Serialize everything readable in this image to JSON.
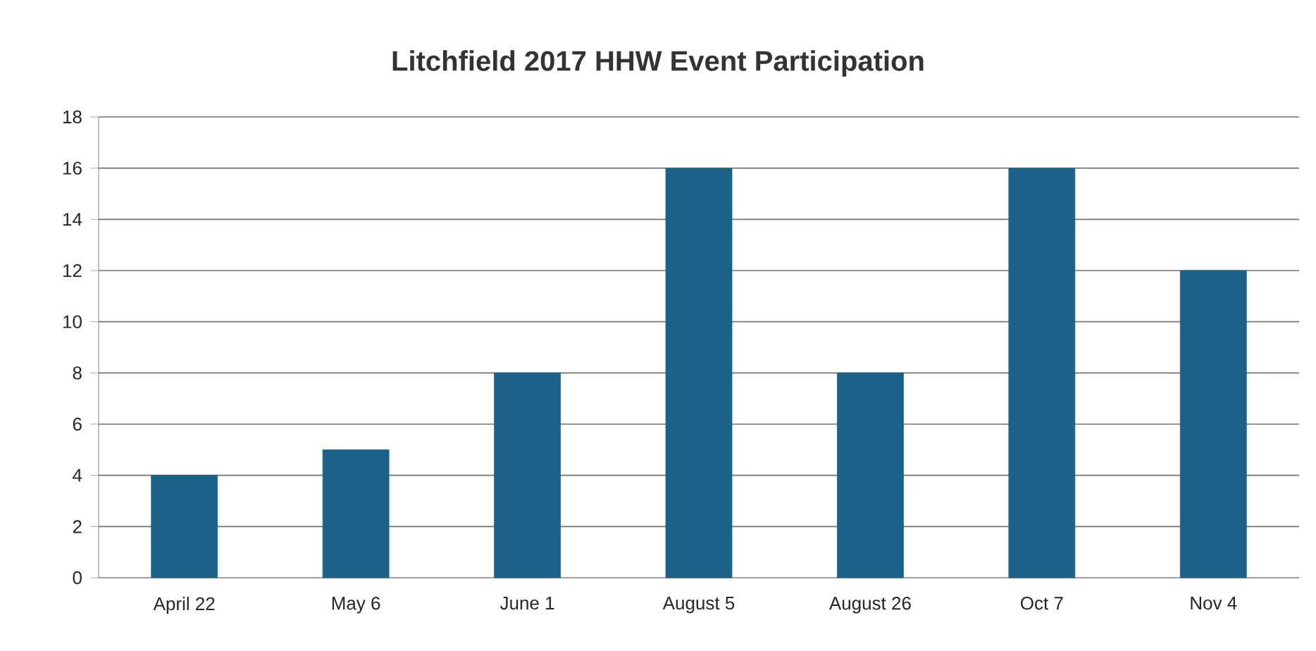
{
  "chart_data": {
    "type": "bar",
    "title": "Litchfield 2017 HHW Event Participation",
    "categories": [
      "April 22",
      "May 6",
      "June 1",
      "August 5",
      "August 26",
      "Oct 7",
      "Nov 4"
    ],
    "values": [
      4,
      5,
      8,
      16,
      8,
      16,
      12
    ],
    "color": "#1c6187",
    "ylim": [
      0,
      18
    ],
    "yticks": [
      0,
      2,
      4,
      6,
      8,
      10,
      12,
      14,
      16,
      18
    ],
    "grid": "y"
  }
}
